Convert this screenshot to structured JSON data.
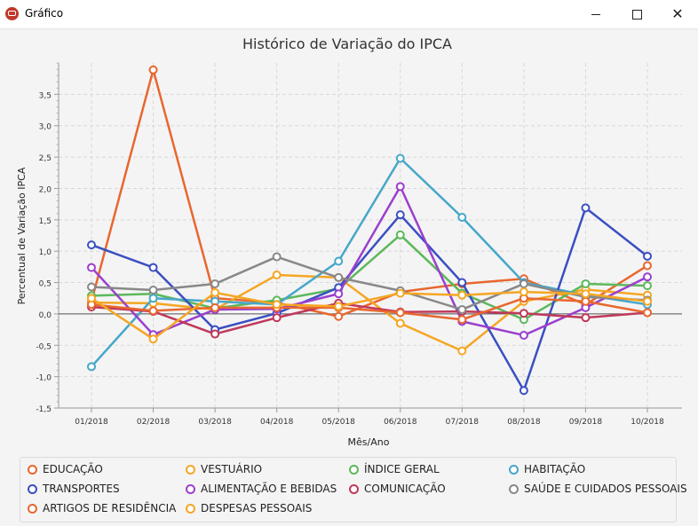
{
  "window": {
    "title": "Gráfico",
    "icon": "chart-app-icon"
  },
  "chart_data": {
    "type": "line",
    "title": "Histórico de Variação do IPCA",
    "xlabel": "Mês/Ano",
    "ylabel": "Percentual de Variação IPCA",
    "ylim": [
      -1.5,
      4.0
    ],
    "yticks": [
      "-1,5",
      "-1,0",
      "-0,5",
      "0,0",
      "0,5",
      "1,0",
      "1,5",
      "2,0",
      "2,5",
      "3,0",
      "3,5"
    ],
    "ytick_values": [
      -1.5,
      -1.0,
      -0.5,
      0.0,
      0.5,
      1.0,
      1.5,
      2.0,
      2.5,
      3.0,
      3.5
    ],
    "categories": [
      "01/2018",
      "02/2018",
      "03/2018",
      "04/2018",
      "05/2018",
      "06/2018",
      "07/2018",
      "08/2018",
      "09/2018",
      "10/2018"
    ],
    "grid": true,
    "legend_position": "bottom",
    "series": [
      {
        "name": "EDUCAÇÃO",
        "color": "#e8672e",
        "values": [
          0.2,
          3.89,
          0.25,
          0.18,
          -0.04,
          0.35,
          0.48,
          0.56,
          0.15,
          0.77
        ]
      },
      {
        "name": "VESTUÁRIO",
        "color": "#f5a623",
        "values": [
          0.18,
          0.17,
          0.07,
          0.62,
          0.58,
          -0.15,
          -0.59,
          0.2,
          0.39,
          0.3
        ]
      },
      {
        "name": "ÍNDICE GERAL",
        "color": "#5cb85c",
        "values": [
          0.29,
          0.32,
          0.09,
          0.22,
          0.4,
          1.26,
          0.33,
          -0.09,
          0.48,
          0.45
        ]
      },
      {
        "name": "HABITAÇÃO",
        "color": "#46a7c9",
        "values": [
          -0.84,
          0.25,
          0.2,
          0.15,
          0.84,
          2.48,
          1.54,
          0.5,
          0.3,
          0.15
        ]
      },
      {
        "name": "TRANSPORTES",
        "color": "#3b4fc1",
        "values": [
          1.1,
          0.74,
          -0.25,
          0.01,
          0.42,
          1.58,
          0.5,
          -1.22,
          1.69,
          0.92
        ]
      },
      {
        "name": "ALIMENTAÇÃO E BEBIDAS",
        "color": "#9b3fce",
        "values": [
          0.74,
          -0.33,
          0.07,
          0.08,
          0.32,
          2.03,
          -0.12,
          -0.34,
          0.1,
          0.59
        ]
      },
      {
        "name": "COMUNICAÇÃO",
        "color": "#c0395a",
        "values": [
          0.11,
          0.04,
          -0.32,
          -0.06,
          0.17,
          0.03,
          0.04,
          0.01,
          -0.06,
          0.02
        ]
      },
      {
        "name": "SAÚDE E CUIDADOS PESSOAIS",
        "color": "#888888",
        "values": [
          0.43,
          0.38,
          0.48,
          0.91,
          0.58,
          0.37,
          0.07,
          0.48,
          0.27,
          0.22
        ]
      },
      {
        "name": "ARTIGOS DE RESIDÊNCIA",
        "color": "#e8672e",
        "values": [
          0.15,
          0.05,
          0.1,
          0.1,
          0.1,
          0.02,
          -0.09,
          0.25,
          0.2,
          0.02
        ]
      },
      {
        "name": "DESPESAS PESSOAIS",
        "color": "#f5a623",
        "values": [
          0.25,
          -0.4,
          0.34,
          0.15,
          0.12,
          0.33,
          0.3,
          0.35,
          0.32,
          0.2
        ]
      }
    ]
  },
  "legend": {
    "items": [
      "EDUCAÇÃO",
      "VESTUÁRIO",
      "ÍNDICE GERAL",
      "HABITAÇÃO",
      "TRANSPORTES",
      "ALIMENTAÇÃO E BEBIDAS",
      "COMUNICAÇÃO",
      "SAÚDE E CUIDADOS PESSOAIS",
      "ARTIGOS DE RESIDÊNCIA",
      "DESPESAS PESSOAIS"
    ]
  }
}
